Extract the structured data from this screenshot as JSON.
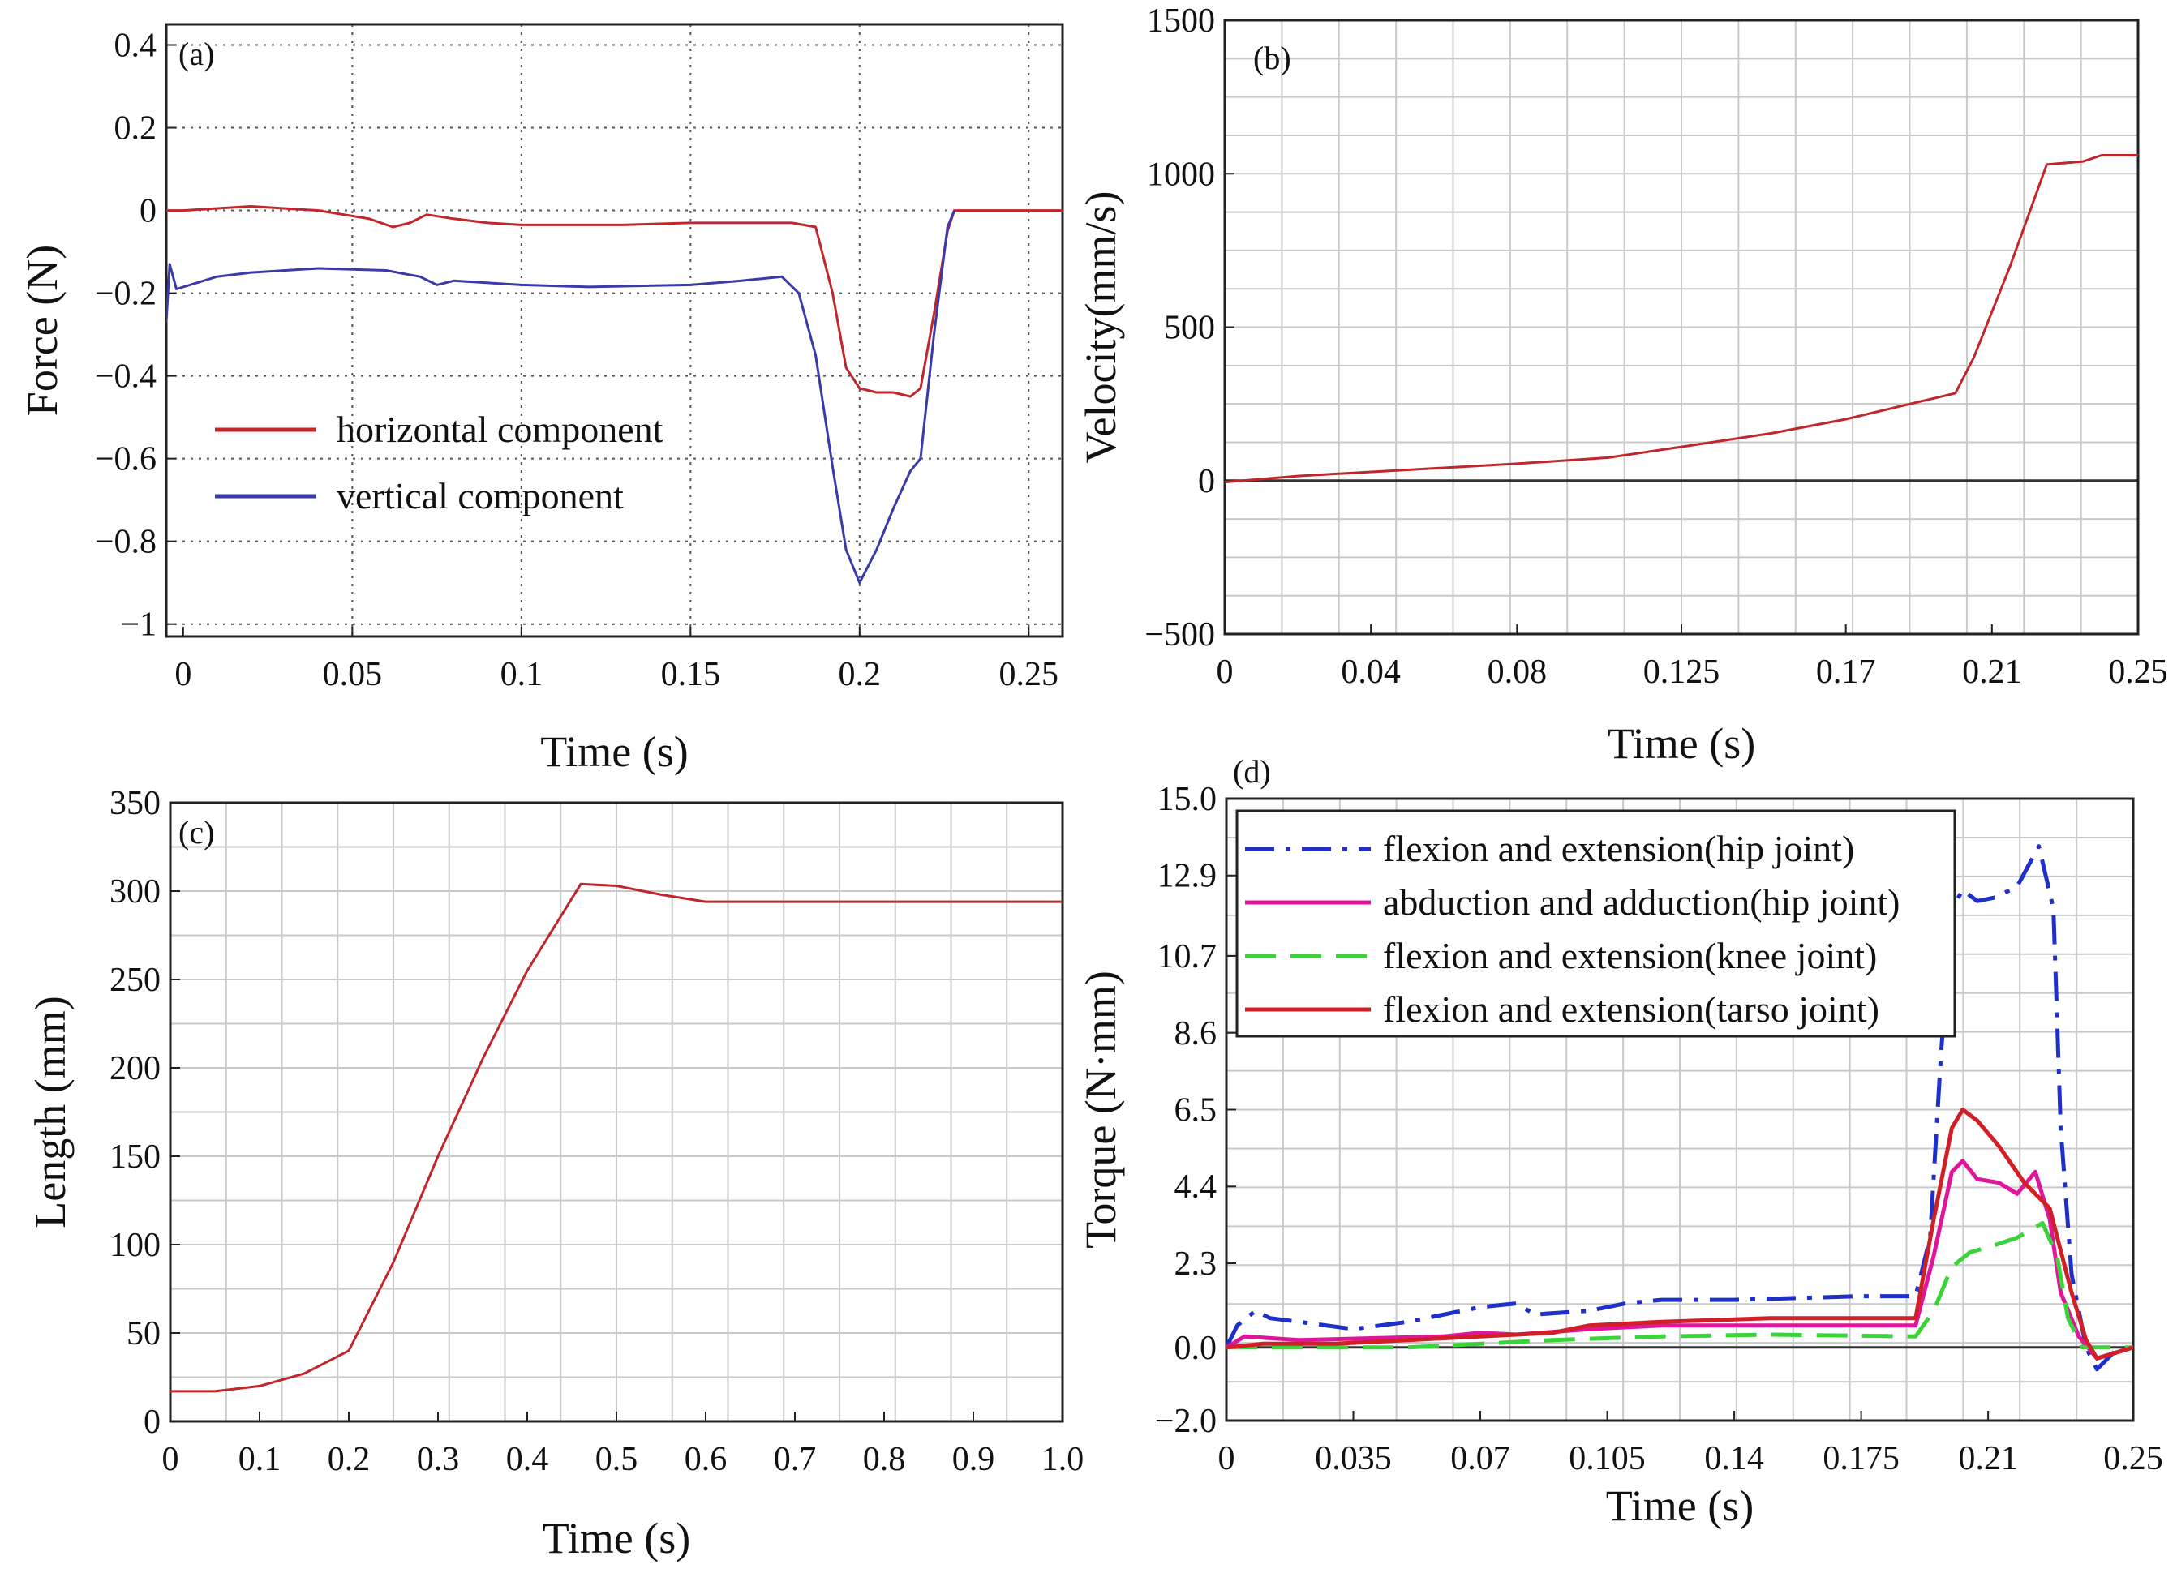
{
  "chart_data": [
    {
      "id": "a",
      "type": "line",
      "panel_label": "(a)",
      "xlabel": "Time (s)",
      "ylabel": "Force (N)",
      "xlim": [
        -0.005,
        0.26
      ],
      "ylim": [
        -1.03,
        0.45
      ],
      "x_ticks": [
        0,
        0.05,
        0.1,
        0.15,
        0.2,
        0.25
      ],
      "x_tick_labels": [
        "0",
        "0.05",
        "0.1",
        "0.15",
        "0.2",
        "0.25"
      ],
      "y_ticks": [
        0.4,
        0.2,
        0,
        -0.2,
        -0.4,
        -0.6,
        -0.8,
        -1
      ],
      "y_tick_labels": [
        "0.4",
        "0.2",
        "0",
        "−0.2",
        "−0.4",
        "−0.6",
        "−0.8",
        "−1"
      ],
      "grid": "dotted",
      "legend_position": "left-middle",
      "series": [
        {
          "name": "horizontal component",
          "color": "#c0262b",
          "style": "solid",
          "points": [
            [
              -0.005,
              0.0
            ],
            [
              0.0,
              0.0
            ],
            [
              0.02,
              0.01
            ],
            [
              0.04,
              0.0
            ],
            [
              0.055,
              -0.02
            ],
            [
              0.062,
              -0.04
            ],
            [
              0.067,
              -0.03
            ],
            [
              0.072,
              -0.01
            ],
            [
              0.08,
              -0.02
            ],
            [
              0.09,
              -0.03
            ],
            [
              0.1,
              -0.035
            ],
            [
              0.13,
              -0.035
            ],
            [
              0.15,
              -0.03
            ],
            [
              0.18,
              -0.03
            ],
            [
              0.187,
              -0.04
            ],
            [
              0.192,
              -0.2
            ],
            [
              0.196,
              -0.38
            ],
            [
              0.2,
              -0.43
            ],
            [
              0.205,
              -0.44
            ],
            [
              0.21,
              -0.44
            ],
            [
              0.215,
              -0.45
            ],
            [
              0.218,
              -0.43
            ],
            [
              0.222,
              -0.25
            ],
            [
              0.226,
              -0.05
            ],
            [
              0.228,
              0.0
            ],
            [
              0.26,
              0.0
            ]
          ]
        },
        {
          "name": "vertical component",
          "color": "#3a3aa8",
          "style": "solid",
          "points": [
            [
              -0.005,
              -0.27
            ],
            [
              -0.004,
              -0.13
            ],
            [
              -0.002,
              -0.19
            ],
            [
              0.01,
              -0.16
            ],
            [
              0.02,
              -0.15
            ],
            [
              0.04,
              -0.14
            ],
            [
              0.06,
              -0.145
            ],
            [
              0.07,
              -0.16
            ],
            [
              0.075,
              -0.18
            ],
            [
              0.08,
              -0.17
            ],
            [
              0.1,
              -0.18
            ],
            [
              0.12,
              -0.185
            ],
            [
              0.15,
              -0.18
            ],
            [
              0.165,
              -0.17
            ],
            [
              0.177,
              -0.16
            ],
            [
              0.182,
              -0.2
            ],
            [
              0.187,
              -0.35
            ],
            [
              0.192,
              -0.62
            ],
            [
              0.196,
              -0.82
            ],
            [
              0.2,
              -0.9
            ],
            [
              0.205,
              -0.82
            ],
            [
              0.21,
              -0.72
            ],
            [
              0.215,
              -0.63
            ],
            [
              0.218,
              -0.6
            ],
            [
              0.222,
              -0.3
            ],
            [
              0.226,
              -0.04
            ],
            [
              0.228,
              0.0
            ]
          ]
        }
      ]
    },
    {
      "id": "b",
      "type": "line",
      "panel_label": "(b)",
      "xlabel": "Time (s)",
      "ylabel": "Velocity(mm/s)",
      "xlim": [
        0,
        0.25
      ],
      "ylim": [
        -500,
        1500
      ],
      "x_ticks": [
        0,
        0.04,
        0.08,
        0.125,
        0.17,
        0.21,
        0.25
      ],
      "x_tick_labels": [
        "0",
        "0.04",
        "0.08",
        "0.125",
        "0.17",
        "0.21",
        "0.25"
      ],
      "y_ticks": [
        1500,
        1000,
        500,
        0,
        -500
      ],
      "y_tick_labels": [
        "1500",
        "1000",
        "500",
        "0",
        "−500"
      ],
      "grid": "solid",
      "zero_line": true,
      "series": [
        {
          "name": "velocity",
          "color": "#c0262b",
          "style": "solid",
          "points": [
            [
              0,
              -5
            ],
            [
              0.01,
              5
            ],
            [
              0.02,
              15
            ],
            [
              0.05,
              35
            ],
            [
              0.08,
              55
            ],
            [
              0.105,
              75
            ],
            [
              0.125,
              110
            ],
            [
              0.15,
              155
            ],
            [
              0.17,
              200
            ],
            [
              0.2,
              285
            ],
            [
              0.205,
              400
            ],
            [
              0.215,
              700
            ],
            [
              0.225,
              1030
            ],
            [
              0.235,
              1040
            ],
            [
              0.24,
              1060
            ],
            [
              0.25,
              1060
            ]
          ]
        }
      ]
    },
    {
      "id": "c",
      "type": "line",
      "panel_label": "(c)",
      "xlabel": "Time (s)",
      "ylabel": "Length (mm)",
      "xlim": [
        0,
        1.0
      ],
      "ylim": [
        0,
        350
      ],
      "x_ticks": [
        0,
        0.1,
        0.2,
        0.3,
        0.4,
        0.5,
        0.6,
        0.7,
        0.8,
        0.9,
        1.0
      ],
      "x_tick_labels": [
        "0",
        "0.1",
        "0.2",
        "0.3",
        "0.4",
        "0.5",
        "0.6",
        "0.7",
        "0.8",
        "0.9",
        "1.0"
      ],
      "y_ticks": [
        0,
        50,
        100,
        150,
        200,
        250,
        300,
        350
      ],
      "y_tick_labels": [
        "0",
        "50",
        "100",
        "150",
        "200",
        "250",
        "300",
        "350"
      ],
      "grid": "solid",
      "series": [
        {
          "name": "length",
          "color": "#c0262b",
          "style": "solid",
          "points": [
            [
              0,
              17
            ],
            [
              0.05,
              17
            ],
            [
              0.1,
              20
            ],
            [
              0.15,
              27
            ],
            [
              0.2,
              40
            ],
            [
              0.25,
              90
            ],
            [
              0.3,
              150
            ],
            [
              0.35,
              205
            ],
            [
              0.4,
              255
            ],
            [
              0.46,
              304
            ],
            [
              0.5,
              303
            ],
            [
              0.55,
              298
            ],
            [
              0.6,
              294
            ],
            [
              0.8,
              294
            ],
            [
              1.0,
              294
            ]
          ]
        }
      ]
    },
    {
      "id": "d",
      "type": "line",
      "panel_label": "(d)",
      "xlabel": "Time (s)",
      "ylabel": "Torque (N·mm)",
      "xlim": [
        0,
        0.25
      ],
      "ylim": [
        -2.0,
        15.0
      ],
      "x_ticks": [
        0,
        0.035,
        0.07,
        0.105,
        0.14,
        0.175,
        0.21,
        0.25
      ],
      "x_tick_labels": [
        "0",
        "0.035",
        "0.07",
        "0.105",
        "0.14",
        "0.175",
        "0.21",
        "0.25"
      ],
      "y_ticks": [
        15.0,
        12.9,
        10.7,
        8.6,
        6.5,
        4.4,
        2.3,
        0.0,
        -2.0
      ],
      "y_tick_labels": [
        "15.0",
        "12.9",
        "10.7",
        "8.6",
        "6.5",
        "4.4",
        "2.3",
        "0.0",
        "−2.0"
      ],
      "grid": "solid",
      "zero_line": true,
      "legend_position": "top-left",
      "series": [
        {
          "name": "flexion and extension(hip joint)",
          "color": "#1f2fc9",
          "style": "dashdot",
          "points": [
            [
              0,
              0
            ],
            [
              0.003,
              0.6
            ],
            [
              0.008,
              1.0
            ],
            [
              0.012,
              0.8
            ],
            [
              0.02,
              0.7
            ],
            [
              0.035,
              0.5
            ],
            [
              0.05,
              0.7
            ],
            [
              0.06,
              0.9
            ],
            [
              0.07,
              1.1
            ],
            [
              0.08,
              1.2
            ],
            [
              0.085,
              0.9
            ],
            [
              0.1,
              1.0
            ],
            [
              0.11,
              1.2
            ],
            [
              0.12,
              1.3
            ],
            [
              0.14,
              1.3
            ],
            [
              0.175,
              1.4
            ],
            [
              0.19,
              1.4
            ],
            [
              0.194,
              3.0
            ],
            [
              0.197,
              8.0
            ],
            [
              0.2,
              12.0
            ],
            [
              0.203,
              12.5
            ],
            [
              0.207,
              12.2
            ],
            [
              0.212,
              12.3
            ],
            [
              0.218,
              12.6
            ],
            [
              0.224,
              13.7
            ],
            [
              0.228,
              12.0
            ],
            [
              0.23,
              6.0
            ],
            [
              0.233,
              2.0
            ],
            [
              0.237,
              0.0
            ],
            [
              0.24,
              -0.6
            ],
            [
              0.245,
              -0.1
            ],
            [
              0.25,
              0.0
            ]
          ]
        },
        {
          "name": "abduction and adduction(hip joint)",
          "color": "#e0169a",
          "style": "solid",
          "points": [
            [
              0,
              0
            ],
            [
              0.005,
              0.3
            ],
            [
              0.02,
              0.2
            ],
            [
              0.04,
              0.25
            ],
            [
              0.06,
              0.3
            ],
            [
              0.07,
              0.4
            ],
            [
              0.08,
              0.35
            ],
            [
              0.1,
              0.5
            ],
            [
              0.12,
              0.6
            ],
            [
              0.15,
              0.6
            ],
            [
              0.19,
              0.6
            ],
            [
              0.195,
              2.5
            ],
            [
              0.2,
              4.8
            ],
            [
              0.203,
              5.1
            ],
            [
              0.207,
              4.6
            ],
            [
              0.213,
              4.5
            ],
            [
              0.218,
              4.2
            ],
            [
              0.223,
              4.8
            ],
            [
              0.227,
              3.5
            ],
            [
              0.23,
              1.5
            ],
            [
              0.235,
              0.3
            ],
            [
              0.24,
              -0.3
            ],
            [
              0.25,
              0.0
            ]
          ]
        },
        {
          "name": "flexion and extension(knee joint)",
          "color": "#3ad43a",
          "style": "dashed",
          "points": [
            [
              0,
              0
            ],
            [
              0.02,
              0.0
            ],
            [
              0.05,
              0.0
            ],
            [
              0.07,
              0.1
            ],
            [
              0.09,
              0.2
            ],
            [
              0.12,
              0.3
            ],
            [
              0.15,
              0.35
            ],
            [
              0.19,
              0.3
            ],
            [
              0.195,
              1.0
            ],
            [
              0.2,
              2.2
            ],
            [
              0.205,
              2.6
            ],
            [
              0.212,
              2.8
            ],
            [
              0.218,
              3.0
            ],
            [
              0.225,
              3.4
            ],
            [
              0.229,
              2.5
            ],
            [
              0.232,
              0.8
            ],
            [
              0.236,
              0.0
            ],
            [
              0.25,
              0.0
            ]
          ]
        },
        {
          "name": "flexion and extension(tarso joint)",
          "color": "#d11f27",
          "style": "solid",
          "points": [
            [
              0,
              0
            ],
            [
              0.01,
              0.1
            ],
            [
              0.03,
              0.1
            ],
            [
              0.05,
              0.2
            ],
            [
              0.07,
              0.3
            ],
            [
              0.09,
              0.4
            ],
            [
              0.1,
              0.6
            ],
            [
              0.12,
              0.7
            ],
            [
              0.15,
              0.8
            ],
            [
              0.19,
              0.8
            ],
            [
              0.195,
              3.5
            ],
            [
              0.2,
              6.0
            ],
            [
              0.203,
              6.5
            ],
            [
              0.207,
              6.2
            ],
            [
              0.213,
              5.5
            ],
            [
              0.22,
              4.5
            ],
            [
              0.227,
              3.8
            ],
            [
              0.233,
              1.5
            ],
            [
              0.237,
              0.2
            ],
            [
              0.24,
              -0.3
            ],
            [
              0.25,
              0.0
            ]
          ]
        }
      ]
    }
  ]
}
